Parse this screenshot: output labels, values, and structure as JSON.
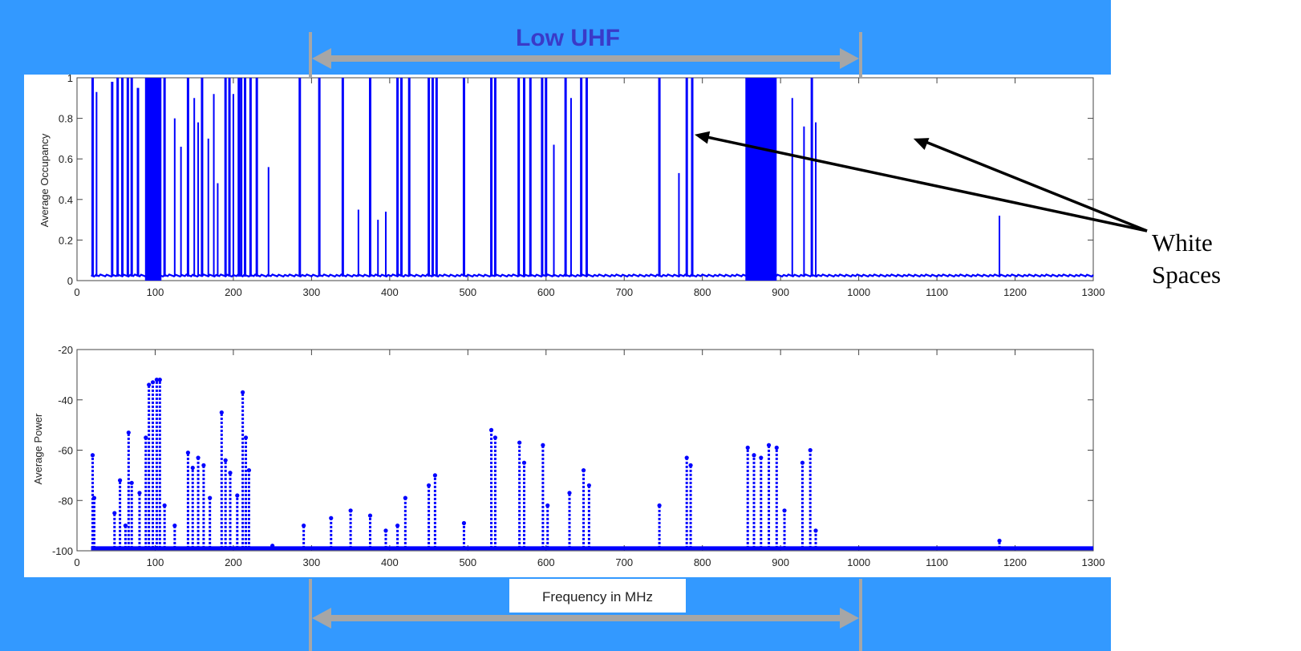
{
  "band": {
    "label": "Low UHF",
    "from_mhz": 300,
    "to_mhz": 1000
  },
  "annotation": {
    "line1": "White",
    "line2": "Spaces",
    "points_to_mhz": [
      790,
      1070
    ],
    "points_to_occupancy": [
      0.72,
      0.7
    ]
  },
  "colors": {
    "frame": "#3399ff",
    "band_arrow": "#a6a6a6",
    "band_label": "#3a3ac8",
    "series": "#0000ff"
  },
  "chart_data": [
    {
      "type": "line",
      "title": "",
      "xlabel": "",
      "ylabel": "Average Occupancy",
      "xlim": [
        0,
        1300
      ],
      "ylim": [
        0,
        1
      ],
      "x_ticks": [
        "0",
        "100",
        "200",
        "300",
        "400",
        "500",
        "600",
        "700",
        "800",
        "900",
        "1000",
        "1100",
        "1200",
        "1300"
      ],
      "y_ticks": [
        "0",
        "0.2",
        "0.4",
        "0.6",
        "0.8",
        "1"
      ],
      "baseline": 0.02,
      "occupied_bands": [
        [
          87,
          108
        ],
        [
          855,
          895
        ]
      ],
      "spikes": [
        [
          20,
          1
        ],
        [
          25,
          0.93
        ],
        [
          45,
          0.98
        ],
        [
          52,
          1
        ],
        [
          58,
          1
        ],
        [
          65,
          1
        ],
        [
          70,
          1
        ],
        [
          78,
          0.95
        ],
        [
          112,
          1
        ],
        [
          125,
          0.8
        ],
        [
          133,
          0.66
        ],
        [
          142,
          1
        ],
        [
          150,
          0.9
        ],
        [
          155,
          0.78
        ],
        [
          160,
          1
        ],
        [
          168,
          0.7
        ],
        [
          175,
          0.92
        ],
        [
          180,
          0.48
        ],
        [
          190,
          1
        ],
        [
          195,
          1
        ],
        [
          200,
          0.92
        ],
        [
          207,
          1
        ],
        [
          210,
          1
        ],
        [
          215,
          1
        ],
        [
          222,
          1
        ],
        [
          230,
          1
        ],
        [
          245,
          0.56
        ],
        [
          285,
          1
        ],
        [
          310,
          1
        ],
        [
          340,
          1
        ],
        [
          360,
          0.35
        ],
        [
          375,
          1
        ],
        [
          385,
          0.3
        ],
        [
          395,
          0.34
        ],
        [
          410,
          1
        ],
        [
          415,
          1
        ],
        [
          425,
          1
        ],
        [
          450,
          1
        ],
        [
          455,
          1
        ],
        [
          460,
          1
        ],
        [
          495,
          1
        ],
        [
          530,
          1
        ],
        [
          535,
          1
        ],
        [
          565,
          1
        ],
        [
          572,
          1
        ],
        [
          580,
          1
        ],
        [
          595,
          1
        ],
        [
          600,
          1
        ],
        [
          610,
          0.67
        ],
        [
          625,
          1
        ],
        [
          632,
          0.9
        ],
        [
          645,
          1
        ],
        [
          652,
          1
        ],
        [
          745,
          1
        ],
        [
          770,
          0.53
        ],
        [
          780,
          1
        ],
        [
          787,
          1
        ],
        [
          915,
          0.9
        ],
        [
          930,
          0.76
        ],
        [
          940,
          1
        ],
        [
          945,
          0.78
        ],
        [
          1180,
          0.32
        ]
      ]
    },
    {
      "type": "scatter",
      "title": "",
      "xlabel": "Frequency in MHz",
      "ylabel": "Average Power",
      "xlim": [
        0,
        1300
      ],
      "ylim": [
        -100,
        -20
      ],
      "x_ticks": [
        "0",
        "100",
        "200",
        "300",
        "400",
        "500",
        "600",
        "700",
        "800",
        "900",
        "1000",
        "1100",
        "1200",
        "1300"
      ],
      "y_ticks": [
        "-100",
        "-80",
        "-60",
        "-40",
        "-20"
      ],
      "floor": -99,
      "peaks": [
        [
          20,
          -62
        ],
        [
          22,
          -79
        ],
        [
          48,
          -85
        ],
        [
          55,
          -72
        ],
        [
          62,
          -90
        ],
        [
          66,
          -53
        ],
        [
          70,
          -73
        ],
        [
          80,
          -77
        ],
        [
          88,
          -55
        ],
        [
          92,
          -34
        ],
        [
          97,
          -33
        ],
        [
          102,
          -32
        ],
        [
          106,
          -32
        ],
        [
          112,
          -82
        ],
        [
          125,
          -90
        ],
        [
          142,
          -61
        ],
        [
          148,
          -67
        ],
        [
          155,
          -63
        ],
        [
          162,
          -66
        ],
        [
          170,
          -79
        ],
        [
          185,
          -45
        ],
        [
          190,
          -64
        ],
        [
          196,
          -69
        ],
        [
          205,
          -78
        ],
        [
          212,
          -37
        ],
        [
          216,
          -55
        ],
        [
          220,
          -68
        ],
        [
          250,
          -98
        ],
        [
          290,
          -90
        ],
        [
          325,
          -87
        ],
        [
          350,
          -84
        ],
        [
          375,
          -86
        ],
        [
          395,
          -92
        ],
        [
          410,
          -90
        ],
        [
          420,
          -79
        ],
        [
          450,
          -74
        ],
        [
          458,
          -70
        ],
        [
          495,
          -89
        ],
        [
          530,
          -52
        ],
        [
          535,
          -55
        ],
        [
          566,
          -57
        ],
        [
          572,
          -65
        ],
        [
          596,
          -58
        ],
        [
          602,
          -82
        ],
        [
          630,
          -77
        ],
        [
          648,
          -68
        ],
        [
          655,
          -74
        ],
        [
          745,
          -82
        ],
        [
          780,
          -63
        ],
        [
          785,
          -66
        ],
        [
          858,
          -59
        ],
        [
          866,
          -62
        ],
        [
          875,
          -63
        ],
        [
          885,
          -58
        ],
        [
          895,
          -59
        ],
        [
          905,
          -84
        ],
        [
          928,
          -65
        ],
        [
          938,
          -60
        ],
        [
          945,
          -92
        ],
        [
          1180,
          -96
        ]
      ]
    }
  ]
}
